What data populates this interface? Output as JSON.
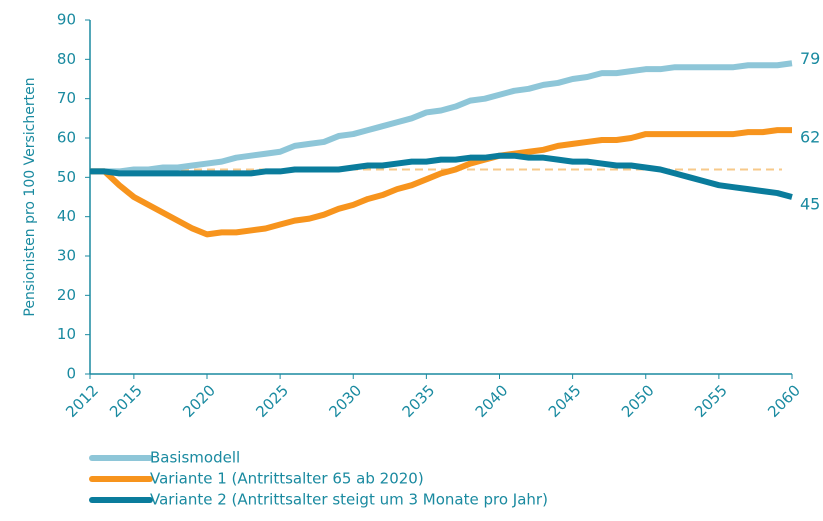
{
  "chart_data": {
    "type": "line",
    "ylabel": "Pensionisten pro 100 Versicherten",
    "x": [
      2012,
      2013,
      2014,
      2015,
      2016,
      2017,
      2018,
      2019,
      2020,
      2021,
      2022,
      2023,
      2024,
      2025,
      2026,
      2027,
      2028,
      2029,
      2030,
      2031,
      2032,
      2033,
      2034,
      2035,
      2036,
      2037,
      2038,
      2039,
      2040,
      2041,
      2042,
      2043,
      2044,
      2045,
      2046,
      2047,
      2048,
      2049,
      2050,
      2051,
      2052,
      2053,
      2054,
      2055,
      2056,
      2057,
      2058,
      2059,
      2060
    ],
    "series": [
      {
        "name": "Basismodell",
        "color": "#8ec6d8",
        "values": [
          51.5,
          51.5,
          51.5,
          52,
          52,
          52.5,
          52.5,
          53,
          53.5,
          54,
          55,
          55.5,
          56,
          56.5,
          58,
          58.5,
          59,
          60.5,
          61,
          62,
          63,
          64,
          65,
          66.5,
          67,
          68,
          69.5,
          70,
          71,
          72,
          72.5,
          73.5,
          74,
          75,
          75.5,
          76.5,
          76.5,
          77,
          77.5,
          77.5,
          78,
          78,
          78,
          78,
          78,
          78.5,
          78.5,
          78.5,
          79
        ]
      },
      {
        "name": "Variante 1 (Antrittsalter 65 ab 2020)",
        "color": "#f7941d",
        "values": [
          51.5,
          51.5,
          48,
          45,
          43,
          41,
          39,
          37,
          35.5,
          36,
          36,
          36.5,
          37,
          38,
          39,
          39.5,
          40.5,
          42,
          43,
          44.5,
          45.5,
          47,
          48,
          49.5,
          51,
          52,
          53.5,
          54.5,
          55.5,
          56,
          56.5,
          57,
          58,
          58.5,
          59,
          59.5,
          59.5,
          60,
          61,
          61,
          61,
          61,
          61,
          61,
          61,
          61.5,
          61.5,
          62,
          62
        ]
      },
      {
        "name": "Variante 2 (Antrittsalter steigt um 3 Monate pro Jahr)",
        "color": "#0a7c9c",
        "values": [
          51.5,
          51.5,
          51,
          51,
          51,
          51,
          51,
          51,
          51,
          51,
          51,
          51,
          51.5,
          51.5,
          52,
          52,
          52,
          52,
          52.5,
          53,
          53,
          53.5,
          54,
          54,
          54.5,
          54.5,
          55,
          55,
          55.5,
          55.5,
          55,
          55,
          54.5,
          54,
          54,
          53.5,
          53,
          53,
          52.5,
          52,
          51,
          50,
          49,
          48,
          47.5,
          47,
          46.5,
          46,
          45
        ]
      }
    ],
    "reference_line": {
      "value": 52,
      "color": "#f7c98a"
    },
    "xlim": [
      2012,
      2060
    ],
    "xticks": [
      2012,
      2015,
      2020,
      2025,
      2030,
      2035,
      2040,
      2045,
      2050,
      2055,
      2060
    ],
    "ylim": [
      0,
      90
    ],
    "yticks": [
      0,
      10,
      20,
      30,
      40,
      50,
      60,
      70,
      80,
      90
    ]
  }
}
